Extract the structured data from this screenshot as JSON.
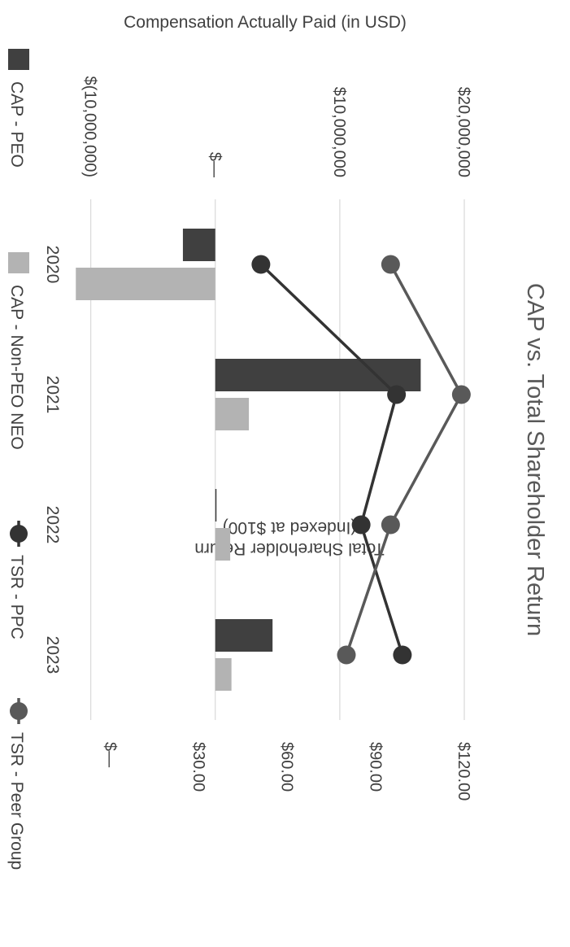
{
  "chart_data": {
    "type": "bar+line",
    "title": "CAP vs. Total Shareholder Return",
    "categories": [
      "2020",
      "2021",
      "2022",
      "2023"
    ],
    "left_axis": {
      "label": "Compensation Actually Paid (in USD)",
      "range": [
        -12000000,
        20000000
      ],
      "ticks": [
        {
          "value": 20000000,
          "label": "$20,000,000"
        },
        {
          "value": 10000000,
          "label": "$10,000,000"
        },
        {
          "value": 0,
          "label": "$—"
        },
        {
          "value": -10000000,
          "label": "$(10,000,000)"
        }
      ]
    },
    "right_axis": {
      "label": "Total Shareholder Return (Indexed at $100)",
      "label_lines": [
        "Total Shareholder Return",
        "(Indexed at $100)"
      ],
      "range": [
        0,
        120
      ],
      "ticks": [
        {
          "value": 120,
          "label": "$120.00"
        },
        {
          "value": 90,
          "label": "$90.00"
        },
        {
          "value": 60,
          "label": "$60.00"
        },
        {
          "value": 30,
          "label": "$30.00"
        },
        {
          "value": 0,
          "label": "$—"
        }
      ]
    },
    "bar_series": [
      {
        "name": "CAP - PEO",
        "color": "#404040",
        "values": [
          -2600000,
          16500000,
          100000,
          4600000
        ]
      },
      {
        "name": "CAP - Non-PEO NEO",
        "color": "#b3b3b3",
        "values": [
          -11200000,
          2700000,
          1200000,
          1300000
        ]
      }
    ],
    "line_series": [
      {
        "name": "TSR - PPC",
        "color": "#333333",
        "values": [
          51,
          97,
          85,
          99
        ]
      },
      {
        "name": "TSR - Peer Group",
        "color": "#595959",
        "values": [
          95,
          119,
          95,
          80
        ]
      }
    ],
    "grid": true,
    "legend_position": "bottom"
  }
}
